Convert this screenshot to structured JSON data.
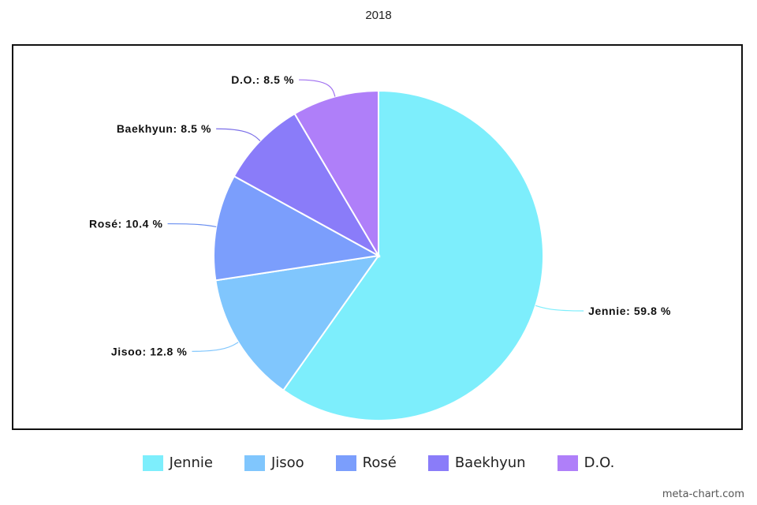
{
  "chart_data": {
    "type": "pie",
    "title": "2018",
    "categories": [
      "Jennie",
      "Jisoo",
      "Rosé",
      "Baekhyun",
      "D.O."
    ],
    "values": [
      59.8,
      12.8,
      10.4,
      8.5,
      8.5
    ],
    "labels": [
      "Jennie: 59.8 %",
      "Jisoo: 12.8 %",
      "Rosé: 10.4 %",
      "Baekhyun: 8.5 %",
      "D.O.: 8.5 %"
    ],
    "colors": [
      "#7DEEFC",
      "#80C6FD",
      "#7B9EFC",
      "#8A7CF9",
      "#AF7FF9"
    ],
    "label_colors": [
      "#7DEEFC",
      "#80C6FD",
      "#6A8FF0",
      "#7A6EE8",
      "#A070F0"
    ],
    "legend_position": "bottom",
    "grid": false
  },
  "watermark": "meta-chart.com"
}
